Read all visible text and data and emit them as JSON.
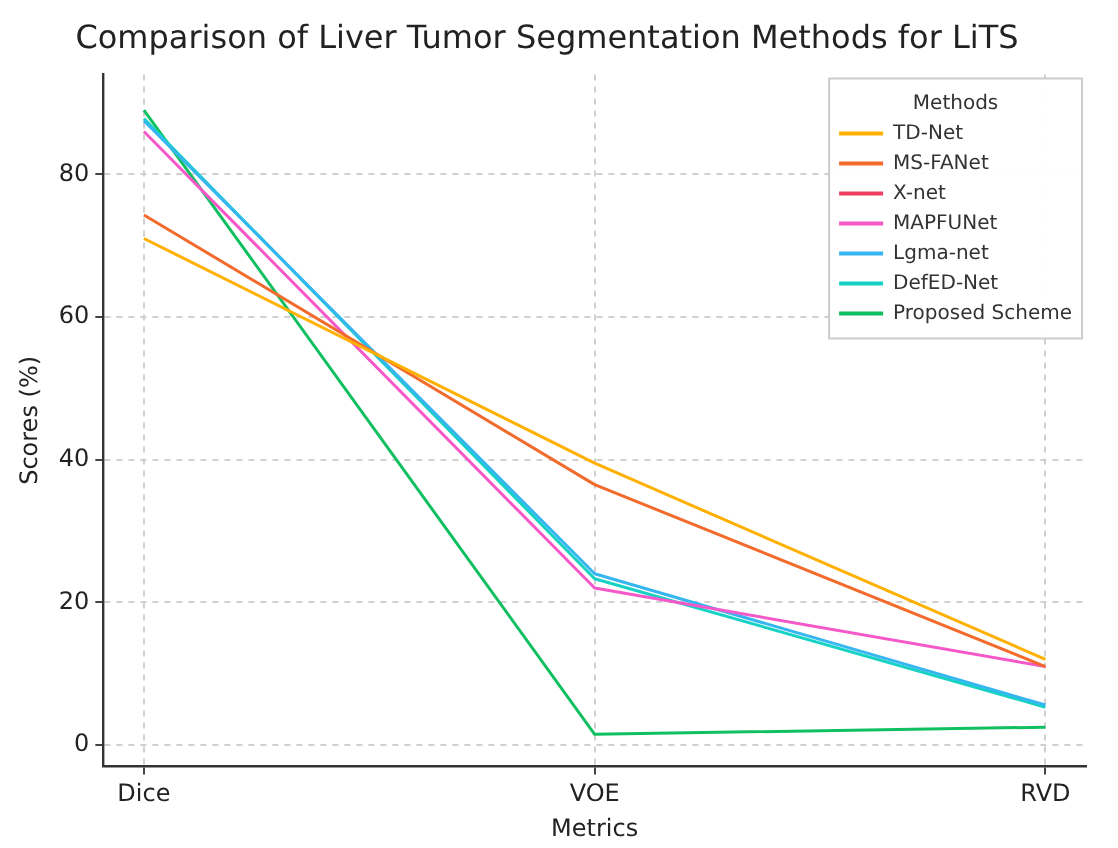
{
  "chart_data": {
    "type": "line",
    "title": "Comparison of Liver Tumor Segmentation Methods for LiTS",
    "xlabel": "Metrics",
    "ylabel": "Scores (%)",
    "legend_title": "Methods",
    "categories": [
      "Dice",
      "VOE",
      "RVD"
    ],
    "series": [
      {
        "name": "TD-Net",
        "color": "#ffb000",
        "values": [
          71,
          39.5,
          12
        ]
      },
      {
        "name": "MS-FANet",
        "color": "#f26b2c",
        "values": [
          74.3,
          36.5,
          11
        ]
      },
      {
        "name": "X-net",
        "color": "#ee3f5e",
        "values": [
          null,
          null,
          null
        ]
      },
      {
        "name": "MAPFUNet",
        "color": "#f558c8",
        "values": [
          86,
          22,
          11
        ]
      },
      {
        "name": "Lgma-net",
        "color": "#35b6f0",
        "values": [
          87.5,
          24,
          5.6
        ]
      },
      {
        "name": "DefED-Net",
        "color": "#16d2c4",
        "values": [
          87.8,
          23.3,
          5.3
        ]
      },
      {
        "name": "Proposed Scheme",
        "color": "#10c060",
        "values": [
          89,
          1.5,
          2.5
        ]
      }
    ],
    "ylim": [
      -3,
      94
    ],
    "yticks": [
      0,
      20,
      40,
      60,
      80
    ],
    "grid": true,
    "legend": "top right",
    "marker": "none",
    "line_style": "solid"
  }
}
